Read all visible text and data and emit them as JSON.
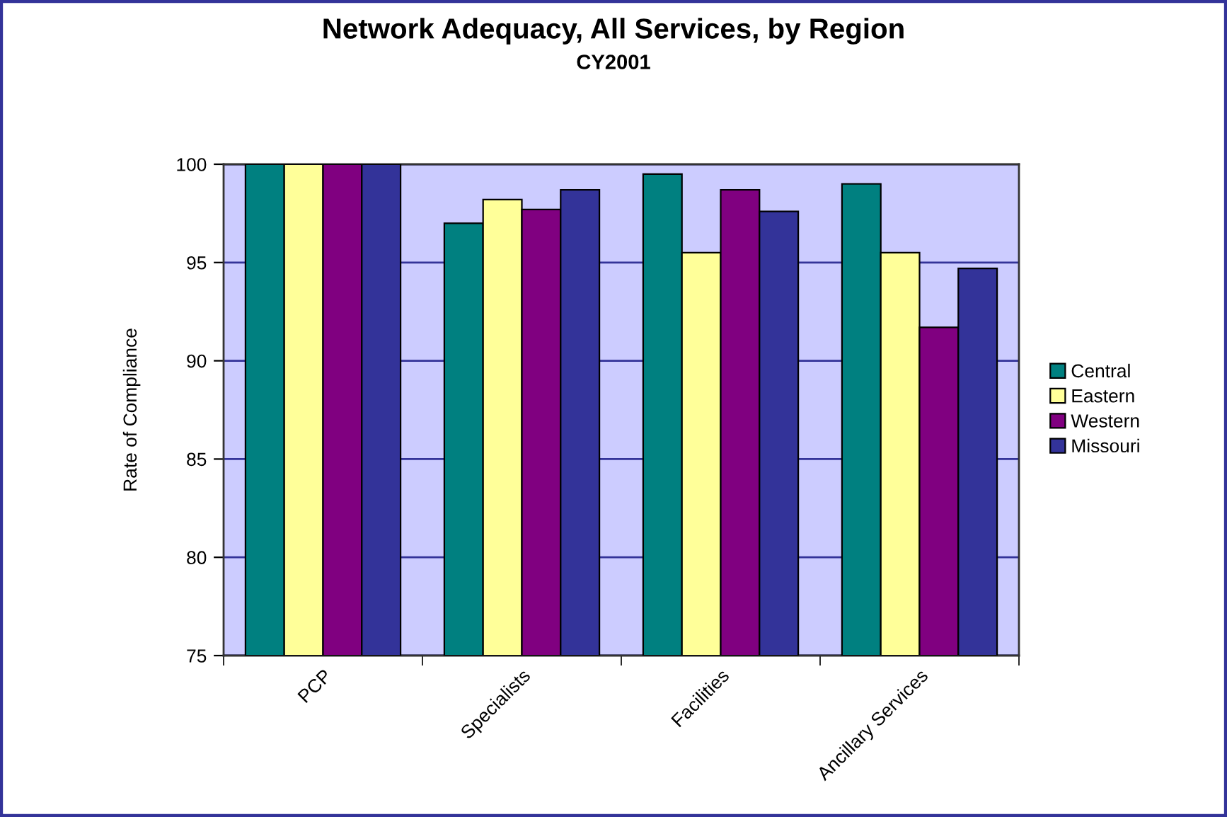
{
  "chart_data": {
    "type": "bar",
    "title": "Network Adequacy, All Services, by Region",
    "subtitle": "CY2001",
    "ylabel": "Rate of Compliance",
    "categories": [
      "PCP",
      "Specialists",
      "Facilities",
      "Ancillary Services"
    ],
    "series": [
      {
        "name": "Central",
        "color": "#008080",
        "values": [
          100,
          97.0,
          99.5,
          99.0
        ]
      },
      {
        "name": "Eastern",
        "color": "#ffff99",
        "values": [
          100,
          98.2,
          95.5,
          95.5
        ]
      },
      {
        "name": "Western",
        "color": "#800080",
        "values": [
          100,
          97.7,
          98.7,
          91.7
        ]
      },
      {
        "name": "Missouri",
        "color": "#333399",
        "values": [
          100,
          98.7,
          97.6,
          94.7
        ]
      }
    ],
    "ylim": [
      75,
      100
    ],
    "yticks": [
      75,
      80,
      85,
      90,
      95,
      100
    ],
    "grid": "y",
    "legend": "right"
  }
}
